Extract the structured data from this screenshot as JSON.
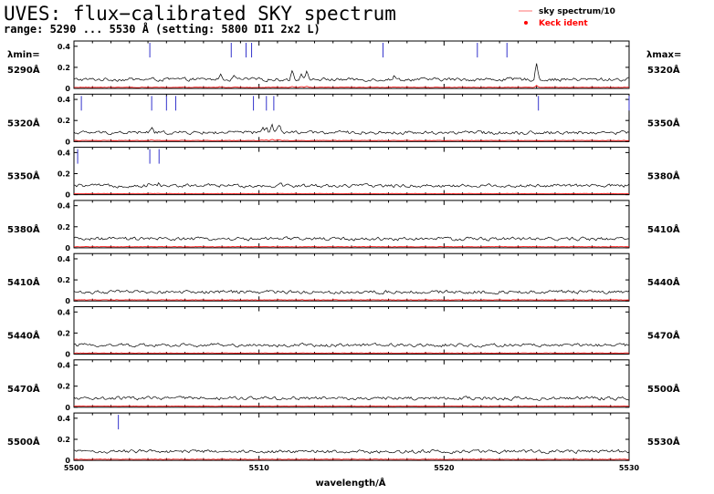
{
  "title": "UVES: flux−calibrated SKY spectrum",
  "subtitle": "range: 5290 ... 5530 Å  (setting: 5800 DI1 2x2 L)",
  "header_left": "λmin=",
  "header_right": "λmax=",
  "legend": [
    {
      "label": "sky spectrum/10",
      "color": "#ff8a8a",
      "marker": "line"
    },
    {
      "label": "Keck ident",
      "color": "#ff0000",
      "marker": "dot"
    }
  ],
  "chart_data": {
    "type": "line",
    "xlabel": "wavelength/Å",
    "bottom_axis": {
      "xlim": [
        5500,
        5530
      ],
      "ticks": [
        5500,
        5510,
        5520,
        5530
      ]
    },
    "ylim": [
      0,
      0.45
    ],
    "yticks": [
      0,
      0.2,
      0.4
    ],
    "colors": {
      "spectrum": "#000000",
      "sky": "#ff0000",
      "ident": "#3333cc"
    },
    "panels": [
      {
        "lambda_min": "5290Å",
        "lambda_max": "5320Å",
        "range": [
          5290,
          5320
        ],
        "emission": [
          [
            5297.9,
            0.05
          ],
          [
            5298.7,
            0.03
          ],
          [
            5301.8,
            0.08
          ],
          [
            5302.3,
            0.07
          ],
          [
            5302.6,
            0.07
          ],
          [
            5307.3,
            0.03
          ],
          [
            5315.0,
            0.15
          ]
        ],
        "idents": [
          5294.1,
          5298.5,
          5299.3,
          5299.6,
          5306.7,
          5311.8,
          5313.4
        ]
      },
      {
        "lambda_min": "5320Å",
        "lambda_max": "5350Å",
        "range": [
          5320,
          5350
        ],
        "emission": [
          [
            5324.2,
            0.04
          ],
          [
            5331.0,
            0.02
          ],
          [
            5330.2,
            0.04
          ],
          [
            5330.4,
            0.04
          ],
          [
            5330.7,
            0.08
          ],
          [
            5331.1,
            0.06
          ]
        ],
        "idents": [
          5320.4,
          5324.2,
          5325.0,
          5325.5,
          5329.7,
          5330.4,
          5330.8,
          5345.1,
          5350.0
        ]
      },
      {
        "lambda_min": "5350Å",
        "lambda_max": "5380Å",
        "range": [
          5350,
          5380
        ],
        "emission": [
          [
            5354.1,
            0.03
          ],
          [
            5354.6,
            0.02
          ],
          [
            5361.2,
            0.02
          ]
        ],
        "idents": [
          5350.2,
          5354.1,
          5354.6
        ]
      },
      {
        "lambda_min": "5380Å",
        "lambda_max": "5410Å",
        "range": [
          5380,
          5410
        ],
        "emission": [],
        "idents": []
      },
      {
        "lambda_min": "5410Å",
        "lambda_max": "5440Å",
        "range": [
          5410,
          5440
        ],
        "emission": [],
        "idents": []
      },
      {
        "lambda_min": "5440Å",
        "lambda_max": "5470Å",
        "range": [
          5440,
          5470
        ],
        "emission": [],
        "idents": []
      },
      {
        "lambda_min": "5470Å",
        "lambda_max": "5500Å",
        "range": [
          5470,
          5500
        ],
        "emission": [],
        "idents": []
      },
      {
        "lambda_min": "5500Å",
        "lambda_max": "5530Å",
        "range": [
          5500,
          5530
        ],
        "emission": [],
        "idents": [
          5502.4
        ]
      }
    ]
  }
}
